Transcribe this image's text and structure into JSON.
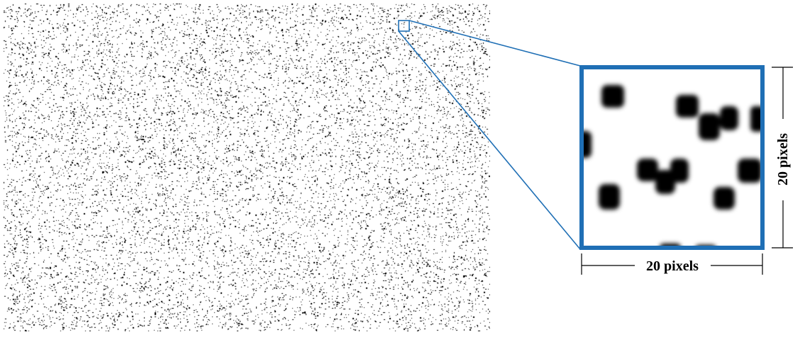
{
  "figure": {
    "zoom_width_label": "20 pixels",
    "zoom_height_label": "20 pixels"
  },
  "colors": {
    "highlight": "#1f6fb5",
    "speckle": "#000000",
    "background": "#ffffff"
  }
}
